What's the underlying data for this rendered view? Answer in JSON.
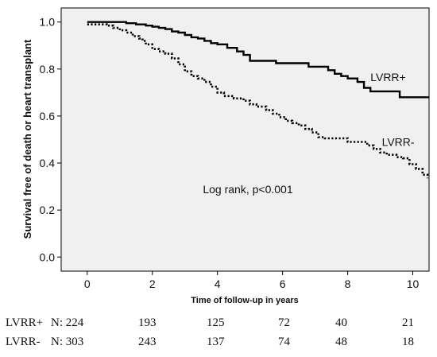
{
  "chart_data": {
    "type": "line",
    "subtype": "step",
    "ylabel": "Survival free of death or heart transplant",
    "xlabel": "Time of follow-up in years",
    "xlim": [
      -0.8,
      10.5
    ],
    "ylim": [
      -0.06,
      1.06
    ],
    "x_ticks": [
      0,
      2,
      4,
      6,
      8,
      10
    ],
    "y_ticks": [
      0.0,
      0.2,
      0.4,
      0.6,
      0.8,
      1.0
    ],
    "y_tick_labels": [
      "0.0",
      "0.2",
      "0.4",
      "0.6",
      "0.8",
      "1.0"
    ],
    "background": "#f0f0f0",
    "annotation": "Log rank, p<0.001",
    "series": [
      {
        "name": "LVRR+",
        "style": "solid",
        "color": "#000000",
        "label_pos": [
          8.7,
          0.765
        ],
        "points": [
          [
            0,
            1.0
          ],
          [
            1.0,
            1.0
          ],
          [
            1.2,
            0.995
          ],
          [
            1.5,
            0.99
          ],
          [
            1.8,
            0.985
          ],
          [
            2.0,
            0.98
          ],
          [
            2.2,
            0.975
          ],
          [
            2.4,
            0.97
          ],
          [
            2.6,
            0.96
          ],
          [
            2.8,
            0.955
          ],
          [
            3.0,
            0.945
          ],
          [
            3.2,
            0.935
          ],
          [
            3.4,
            0.93
          ],
          [
            3.6,
            0.92
          ],
          [
            3.8,
            0.91
          ],
          [
            4.0,
            0.905
          ],
          [
            4.3,
            0.89
          ],
          [
            4.6,
            0.875
          ],
          [
            4.8,
            0.86
          ],
          [
            5.0,
            0.835
          ],
          [
            5.5,
            0.835
          ],
          [
            5.8,
            0.825
          ],
          [
            6.6,
            0.825
          ],
          [
            6.8,
            0.81
          ],
          [
            7.2,
            0.81
          ],
          [
            7.4,
            0.795
          ],
          [
            7.6,
            0.78
          ],
          [
            7.8,
            0.77
          ],
          [
            8.0,
            0.76
          ],
          [
            8.3,
            0.745
          ],
          [
            8.5,
            0.72
          ],
          [
            8.7,
            0.705
          ],
          [
            9.5,
            0.705
          ],
          [
            9.6,
            0.68
          ],
          [
            10.5,
            0.68
          ]
        ]
      },
      {
        "name": "LVRR-",
        "style": "dotted",
        "color": "#000000",
        "label_pos": [
          9.05,
          0.49
        ],
        "points": [
          [
            0,
            0.99
          ],
          [
            0.6,
            0.985
          ],
          [
            0.8,
            0.975
          ],
          [
            1.0,
            0.965
          ],
          [
            1.2,
            0.955
          ],
          [
            1.4,
            0.94
          ],
          [
            1.6,
            0.93
          ],
          [
            1.7,
            0.92
          ],
          [
            1.8,
            0.905
          ],
          [
            2.0,
            0.885
          ],
          [
            2.2,
            0.875
          ],
          [
            2.4,
            0.865
          ],
          [
            2.6,
            0.845
          ],
          [
            2.8,
            0.82
          ],
          [
            3.0,
            0.79
          ],
          [
            3.2,
            0.77
          ],
          [
            3.4,
            0.76
          ],
          [
            3.6,
            0.745
          ],
          [
            3.8,
            0.725
          ],
          [
            4.0,
            0.7
          ],
          [
            4.2,
            0.685
          ],
          [
            4.5,
            0.675
          ],
          [
            4.8,
            0.665
          ],
          [
            5.0,
            0.65
          ],
          [
            5.2,
            0.64
          ],
          [
            5.5,
            0.625
          ],
          [
            5.7,
            0.61
          ],
          [
            5.9,
            0.595
          ],
          [
            6.1,
            0.58
          ],
          [
            6.3,
            0.57
          ],
          [
            6.5,
            0.56
          ],
          [
            6.7,
            0.545
          ],
          [
            6.9,
            0.53
          ],
          [
            7.1,
            0.51
          ],
          [
            7.3,
            0.505
          ],
          [
            7.8,
            0.505
          ],
          [
            8.0,
            0.49
          ],
          [
            8.4,
            0.49
          ],
          [
            8.6,
            0.475
          ],
          [
            8.8,
            0.46
          ],
          [
            9.0,
            0.445
          ],
          [
            9.2,
            0.435
          ],
          [
            9.5,
            0.425
          ],
          [
            9.7,
            0.42
          ],
          [
            9.9,
            0.395
          ],
          [
            10.1,
            0.375
          ],
          [
            10.3,
            0.35
          ],
          [
            10.45,
            0.335
          ]
        ]
      }
    ]
  },
  "risk_table": {
    "rows": [
      {
        "group": "LVRR+",
        "first": "N: 224",
        "values": [
          "193",
          "125",
          "72",
          "40",
          "21"
        ]
      },
      {
        "group": "LVRR-",
        "first": "N: 303",
        "values": [
          "243",
          "137",
          "74",
          "48",
          "18"
        ]
      }
    ]
  }
}
